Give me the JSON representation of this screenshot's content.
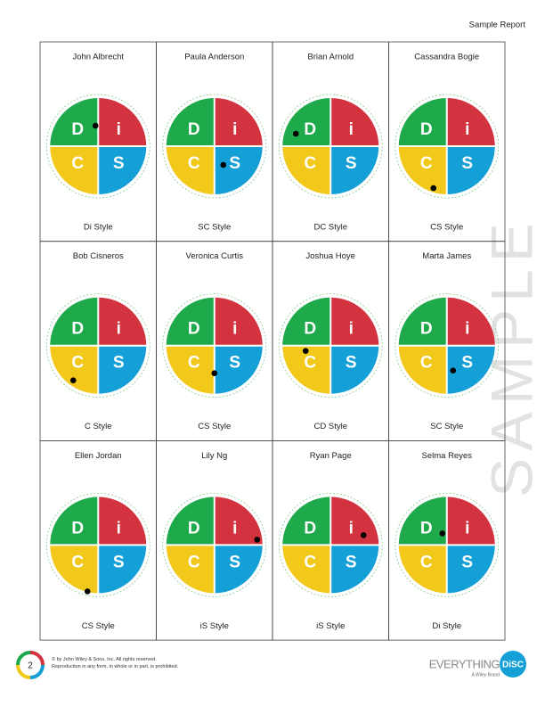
{
  "header": {
    "title": "Sample Report"
  },
  "quadrants": [
    "D",
    "i",
    "C",
    "S"
  ],
  "cards": [
    {
      "name": "John Albrecht",
      "style": "Di Style"
    },
    {
      "name": "Paula Anderson",
      "style": "SC Style"
    },
    {
      "name": "Brian Arnold",
      "style": "DC Style"
    },
    {
      "name": "Cassandra Bogie",
      "style": "CS Style"
    },
    {
      "name": "Bob Cisneros",
      "style": "C Style"
    },
    {
      "name": "Veronica Curtis",
      "style": "CS Style"
    },
    {
      "name": "Joshua Hoye",
      "style": "CD Style"
    },
    {
      "name": "Marta James",
      "style": "SC Style"
    },
    {
      "name": "Ellen Jordan",
      "style": "CS Style"
    },
    {
      "name": "Lily Ng",
      "style": "iS Style"
    },
    {
      "name": "Ryan Page",
      "style": "iS Style"
    },
    {
      "name": "Selma Reyes",
      "style": "Di Style"
    }
  ],
  "watermark": "SAMPLE",
  "footer": {
    "page": "2",
    "copyright": [
      "© by John Wiley & Sons, Inc. All rights reserved.",
      "Reproduction in any form, in whole or in part, is prohibited."
    ],
    "logo": {
      "brand": "EVERYTHING",
      "mark": "DiSC",
      "tagline": "A Wiley Brand"
    }
  }
}
